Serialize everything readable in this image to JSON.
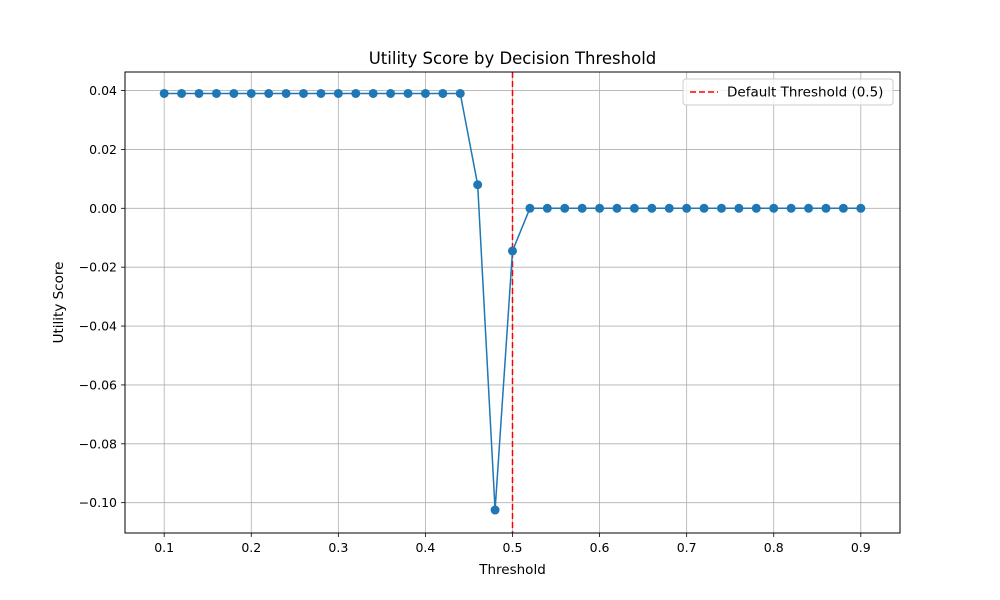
{
  "chart_data": {
    "type": "line",
    "title": "Utility Score by Decision Threshold",
    "xlabel": "Threshold",
    "ylabel": "Utility Score",
    "xlim": [
      0.055,
      0.945
    ],
    "ylim": [
      -0.1103,
      0.0463
    ],
    "xticks": [
      0.1,
      0.2,
      0.3,
      0.4,
      0.5,
      0.6,
      0.7,
      0.8,
      0.9
    ],
    "xtick_labels": [
      "0.1",
      "0.2",
      "0.3",
      "0.4",
      "0.5",
      "0.6",
      "0.7",
      "0.8",
      "0.9"
    ],
    "yticks": [
      0.04,
      0.02,
      0.0,
      -0.02,
      -0.04,
      -0.06,
      -0.08,
      -0.1
    ],
    "ytick_labels": [
      "0.04",
      "0.02",
      "0.00",
      "−0.02",
      "−0.04",
      "−0.06",
      "−0.08",
      "−0.10"
    ],
    "grid": true,
    "series": [
      {
        "color": "#1f77b4",
        "marker": "circle",
        "x": [
          0.1,
          0.12,
          0.14,
          0.16,
          0.18,
          0.2,
          0.22,
          0.24,
          0.26,
          0.28,
          0.3,
          0.32,
          0.34,
          0.36,
          0.38,
          0.4,
          0.42,
          0.44,
          0.46,
          0.48,
          0.5,
          0.52,
          0.54,
          0.56,
          0.58,
          0.6,
          0.62,
          0.64,
          0.66,
          0.68,
          0.7,
          0.72,
          0.74,
          0.76,
          0.78,
          0.8,
          0.82,
          0.84,
          0.86,
          0.88,
          0.9
        ],
        "y": [
          0.039,
          0.039,
          0.039,
          0.039,
          0.039,
          0.039,
          0.039,
          0.039,
          0.039,
          0.039,
          0.039,
          0.039,
          0.039,
          0.039,
          0.039,
          0.039,
          0.039,
          0.039,
          0.008,
          -0.1025,
          -0.0145,
          0,
          0,
          0,
          0,
          0,
          0,
          0,
          0,
          0,
          0,
          0,
          0,
          0,
          0,
          0,
          0,
          0,
          0,
          0,
          0
        ]
      }
    ],
    "reference_line": {
      "orientation": "vertical",
      "x": 0.5,
      "color": "#ff0000",
      "style": "dashed",
      "label": "Default Threshold (0.5)"
    },
    "legend": {
      "placement": "top-right"
    }
  }
}
